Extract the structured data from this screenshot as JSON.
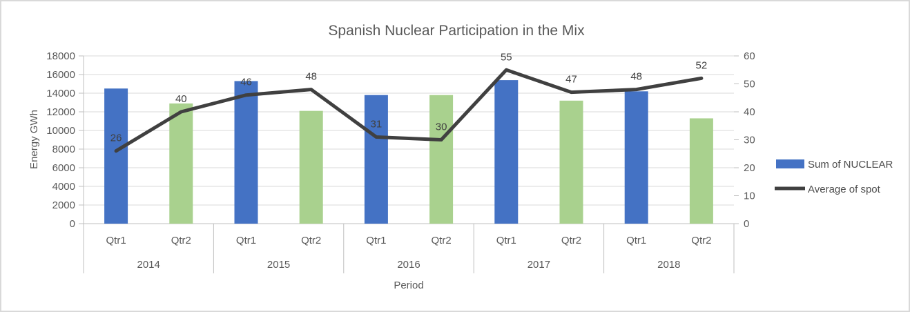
{
  "title": "Spanish Nuclear Participation in the Mix",
  "colors": {
    "bar_qtr1": "#4472C4",
    "bar_qtr2": "#A9D18E",
    "line": "#404040",
    "gridline": "#D9D9D9",
    "axis_line": "#BFBFBF",
    "text": "#595959",
    "data_label": "#404040",
    "frame_border": "#D9D9D9"
  },
  "legend": {
    "position": "right",
    "items": [
      {
        "label": "Sum of NUCLEAR",
        "swatch": "bar",
        "color": "#4472C4"
      },
      {
        "label": "Average of spot",
        "swatch": "line",
        "color": "#404040"
      }
    ]
  },
  "chart_data": {
    "type": "bar+line combo",
    "title": "Spanish Nuclear Participation in the Mix",
    "x_axis": {
      "title": "Period",
      "years": [
        "2014",
        "2015",
        "2016",
        "2017",
        "2018"
      ],
      "quarters_per_year": [
        "Qtr1",
        "Qtr2"
      ]
    },
    "y_left": {
      "title": "Energy GWh",
      "min": 0,
      "max": 18000,
      "step": 2000
    },
    "y_right": {
      "title": "",
      "min": 0,
      "max": 60,
      "step": 10
    },
    "grid": "horizontal major gridlines on",
    "legend_position": "right",
    "series": [
      {
        "name": "Sum of NUCLEAR",
        "type": "bar",
        "axis": "left",
        "note": "bar color varies by quarter: Qtr1 blue, Qtr2 green; values estimated from gridlines",
        "values": [
          14500,
          12900,
          15300,
          12100,
          13800,
          13800,
          15400,
          13200,
          14200,
          11300
        ]
      },
      {
        "name": "Average of spot",
        "type": "line",
        "axis": "right",
        "data_labels_shown": true,
        "values": [
          26,
          40,
          46,
          48,
          31,
          30,
          55,
          47,
          48,
          52
        ]
      }
    ]
  }
}
